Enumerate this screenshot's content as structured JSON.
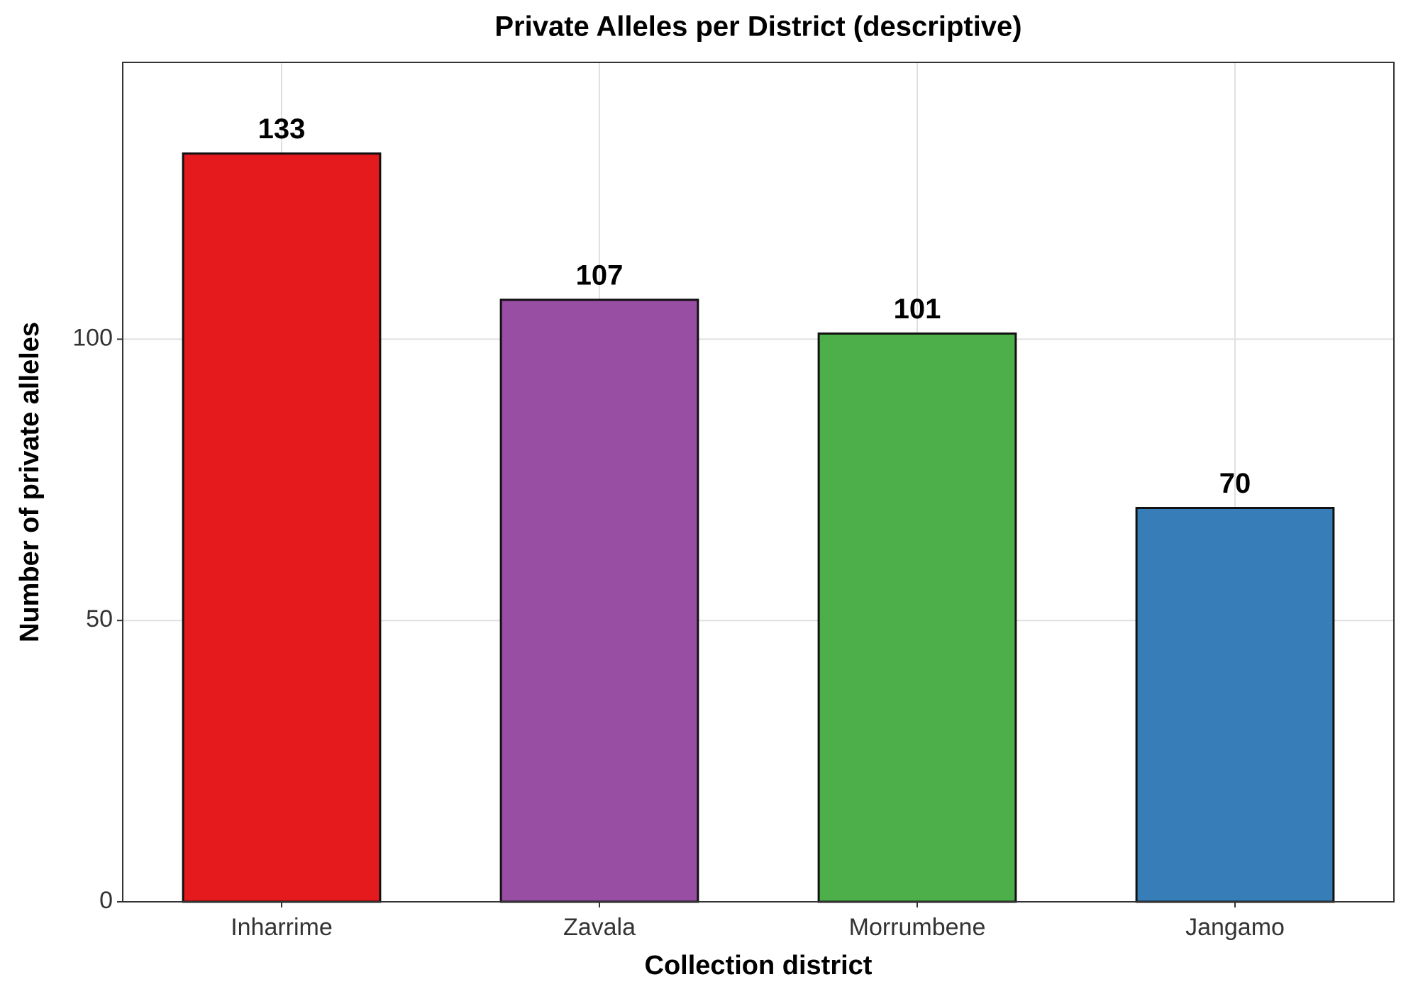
{
  "chart_data": {
    "type": "bar",
    "title": "Private Alleles per District (descriptive)",
    "x_label": "Collection district",
    "y_label": "Number of private alleles",
    "categories": [
      "Inharrime",
      "Zavala",
      "Morrumbene",
      "Jangamo"
    ],
    "values": [
      133,
      107,
      101,
      70
    ],
    "colors": [
      "#e41a1c",
      "#984ea3",
      "#4daf4a",
      "#377eb8"
    ],
    "ylim": [
      0,
      149.2
    ],
    "yticks": [
      0,
      50,
      100
    ],
    "grid": true
  }
}
